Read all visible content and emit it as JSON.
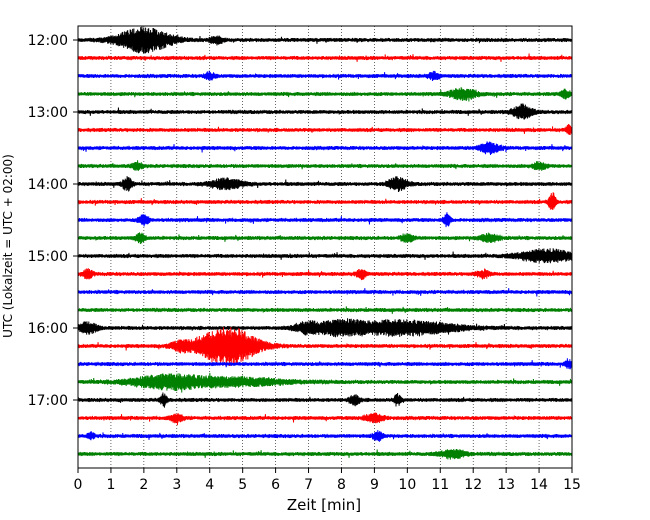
{
  "chart_data": {
    "type": "line",
    "title": "",
    "xlabel": "Zeit  [min]",
    "ylabel": "UTC (Lokalzeit = UTC + 02:00)",
    "xlim": [
      0,
      15
    ],
    "x_ticks": [
      "0",
      "1",
      "2",
      "3",
      "4",
      "5",
      "6",
      "7",
      "8",
      "9",
      "10",
      "11",
      "12",
      "13",
      "14",
      "15"
    ],
    "y_ticks": [
      "12:00",
      "13:00",
      "14:00",
      "15:00",
      "16:00",
      "17:00"
    ],
    "grid": "vertical dotted",
    "trace_interval_min": 15,
    "trace_colors": [
      "#000000",
      "#ff0000",
      "#0000ff",
      "#008000"
    ],
    "series": [
      {
        "start": "12:00",
        "color": "#000000",
        "events": [
          {
            "t": 2.0,
            "amp": 1.0,
            "w": 0.8
          },
          {
            "t": 4.2,
            "amp": 0.3,
            "w": 0.2
          }
        ]
      },
      {
        "start": "12:15",
        "color": "#ff0000",
        "events": []
      },
      {
        "start": "12:30",
        "color": "#0000ff",
        "events": [
          {
            "t": 4.0,
            "amp": 0.3,
            "w": 0.15
          },
          {
            "t": 10.8,
            "amp": 0.3,
            "w": 0.15
          }
        ]
      },
      {
        "start": "12:45",
        "color": "#008000",
        "events": [
          {
            "t": 11.7,
            "amp": 0.45,
            "w": 0.4
          },
          {
            "t": 14.8,
            "amp": 0.3,
            "w": 0.15
          }
        ]
      },
      {
        "start": "13:00",
        "color": "#000000",
        "events": [
          {
            "t": 13.5,
            "amp": 0.55,
            "w": 0.3
          }
        ]
      },
      {
        "start": "13:15",
        "color": "#ff0000",
        "events": [
          {
            "t": 14.9,
            "amp": 0.35,
            "w": 0.1
          }
        ]
      },
      {
        "start": "13:30",
        "color": "#0000ff",
        "events": [
          {
            "t": 12.5,
            "amp": 0.45,
            "w": 0.3
          }
        ]
      },
      {
        "start": "13:45",
        "color": "#008000",
        "events": [
          {
            "t": 1.8,
            "amp": 0.3,
            "w": 0.15
          },
          {
            "t": 14.0,
            "amp": 0.3,
            "w": 0.2
          }
        ]
      },
      {
        "start": "14:00",
        "color": "#000000",
        "events": [
          {
            "t": 1.5,
            "amp": 0.5,
            "w": 0.15
          },
          {
            "t": 4.5,
            "amp": 0.4,
            "w": 0.5
          },
          {
            "t": 9.7,
            "amp": 0.5,
            "w": 0.3
          }
        ]
      },
      {
        "start": "14:15",
        "color": "#ff0000",
        "events": [
          {
            "t": 14.4,
            "amp": 0.8,
            "w": 0.1
          }
        ]
      },
      {
        "start": "14:30",
        "color": "#0000ff",
        "events": [
          {
            "t": 2.0,
            "amp": 0.4,
            "w": 0.15
          },
          {
            "t": 11.2,
            "amp": 0.6,
            "w": 0.1
          }
        ]
      },
      {
        "start": "14:45",
        "color": "#008000",
        "events": [
          {
            "t": 1.9,
            "amp": 0.35,
            "w": 0.15
          },
          {
            "t": 10.0,
            "amp": 0.3,
            "w": 0.2
          },
          {
            "t": 12.5,
            "amp": 0.3,
            "w": 0.3
          }
        ]
      },
      {
        "start": "15:00",
        "color": "#000000",
        "events": [
          {
            "t": 14.2,
            "amp": 0.55,
            "w": 0.8
          }
        ]
      },
      {
        "start": "15:15",
        "color": "#ff0000",
        "events": [
          {
            "t": 0.3,
            "amp": 0.35,
            "w": 0.15
          },
          {
            "t": 8.6,
            "amp": 0.35,
            "w": 0.15
          },
          {
            "t": 12.3,
            "amp": 0.3,
            "w": 0.2
          }
        ]
      },
      {
        "start": "15:30",
        "color": "#0000ff",
        "events": []
      },
      {
        "start": "15:45",
        "color": "#008000",
        "events": []
      },
      {
        "start": "16:00",
        "color": "#000000",
        "events": [
          {
            "t": 0.3,
            "amp": 0.45,
            "w": 0.3
          },
          {
            "t": 7.0,
            "amp": 0.45,
            "w": 0.4
          },
          {
            "t": 8.0,
            "amp": 0.55,
            "w": 0.6
          },
          {
            "t": 9.8,
            "amp": 0.6,
            "w": 1.6
          }
        ]
      },
      {
        "start": "16:15",
        "color": "#ff0000",
        "events": [
          {
            "t": 3.1,
            "amp": 0.3,
            "w": 0.3
          },
          {
            "t": 4.5,
            "amp": 1.6,
            "w": 0.9
          }
        ]
      },
      {
        "start": "16:30",
        "color": "#0000ff",
        "events": [
          {
            "t": 14.9,
            "amp": 0.35,
            "w": 0.1
          }
        ]
      },
      {
        "start": "16:45",
        "color": "#008000",
        "events": [
          {
            "t": 2.8,
            "amp": 0.55,
            "w": 1.2
          },
          {
            "t": 5.0,
            "amp": 0.3,
            "w": 1.5
          }
        ]
      },
      {
        "start": "17:00",
        "color": "#000000",
        "events": [
          {
            "t": 2.6,
            "amp": 0.5,
            "w": 0.1
          },
          {
            "t": 8.4,
            "amp": 0.4,
            "w": 0.15
          },
          {
            "t": 9.7,
            "amp": 0.45,
            "w": 0.1
          }
        ]
      },
      {
        "start": "17:15",
        "color": "#ff0000",
        "events": [
          {
            "t": 3.0,
            "amp": 0.3,
            "w": 0.2
          },
          {
            "t": 9.0,
            "amp": 0.35,
            "w": 0.3
          }
        ]
      },
      {
        "start": "17:30",
        "color": "#0000ff",
        "events": [
          {
            "t": 0.4,
            "amp": 0.3,
            "w": 0.1
          },
          {
            "t": 9.1,
            "amp": 0.35,
            "w": 0.15
          }
        ]
      },
      {
        "start": "17:45",
        "color": "#008000",
        "events": [
          {
            "t": 11.4,
            "amp": 0.35,
            "w": 0.4
          }
        ]
      }
    ]
  }
}
